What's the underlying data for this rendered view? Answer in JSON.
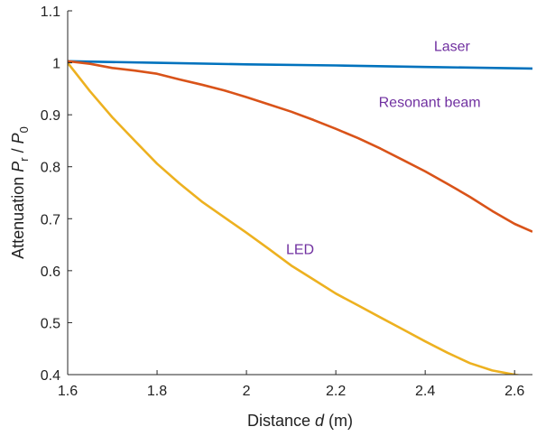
{
  "chart_data": {
    "type": "line",
    "title": "",
    "xlabel": {
      "prefix": "Distance ",
      "var": "d",
      "suffix": " (m)"
    },
    "ylabel": {
      "prefix": "Attenuation ",
      "num": "P",
      "num_sub": "r",
      "slash": " / ",
      "den": "P",
      "den_sub": "0"
    },
    "xlim": [
      1.6,
      2.64
    ],
    "ylim": [
      0.4,
      1.1
    ],
    "xticks": [
      1.6,
      1.8,
      2,
      2.2,
      2.4,
      2.6
    ],
    "xtick_labels": [
      "1.6",
      "1.8",
      "2",
      "2.2",
      "2.4",
      "2.6"
    ],
    "yticks": [
      0.4,
      0.5,
      0.6,
      0.7,
      0.8,
      0.9,
      1,
      1.1
    ],
    "ytick_labels": [
      "0.4",
      "0.5",
      "0.6",
      "0.7",
      "0.8",
      "0.9",
      "1",
      "1.1"
    ],
    "grid": false,
    "series": [
      {
        "name": "Laser",
        "color": "#0072BD",
        "label_at": [
          2.46,
          1.023
        ],
        "x": [
          1.6,
          1.8,
          2.0,
          2.2,
          2.4,
          2.64
        ],
        "y": [
          1.003,
          1.0,
          0.997,
          0.995,
          0.992,
          0.989
        ]
      },
      {
        "name": "Resonant   beam",
        "color": "#D95319",
        "label_at": [
          2.41,
          0.915
        ],
        "x": [
          1.6,
          1.65,
          1.7,
          1.75,
          1.8,
          1.85,
          1.9,
          1.95,
          2.0,
          2.05,
          2.1,
          2.15,
          2.2,
          2.25,
          2.3,
          2.35,
          2.4,
          2.45,
          2.5,
          2.55,
          2.6,
          2.64
        ],
        "y": [
          1.003,
          0.998,
          0.99,
          0.985,
          0.979,
          0.968,
          0.958,
          0.947,
          0.934,
          0.92,
          0.906,
          0.89,
          0.873,
          0.855,
          0.835,
          0.813,
          0.791,
          0.767,
          0.742,
          0.715,
          0.69,
          0.675
        ]
      },
      {
        "name": "LED",
        "color": "#EDB120",
        "label_at": [
          2.12,
          0.632
        ],
        "x": [
          1.6,
          1.65,
          1.7,
          1.75,
          1.8,
          1.85,
          1.9,
          1.95,
          2.0,
          2.05,
          2.1,
          2.15,
          2.2,
          2.25,
          2.3,
          2.35,
          2.4,
          2.45,
          2.5,
          2.55,
          2.6,
          2.63
        ],
        "y": [
          1.0,
          0.945,
          0.895,
          0.85,
          0.806,
          0.768,
          0.733,
          0.703,
          0.673,
          0.642,
          0.61,
          0.583,
          0.556,
          0.533,
          0.51,
          0.487,
          0.464,
          0.442,
          0.422,
          0.408,
          0.4,
          0.396
        ]
      }
    ]
  }
}
